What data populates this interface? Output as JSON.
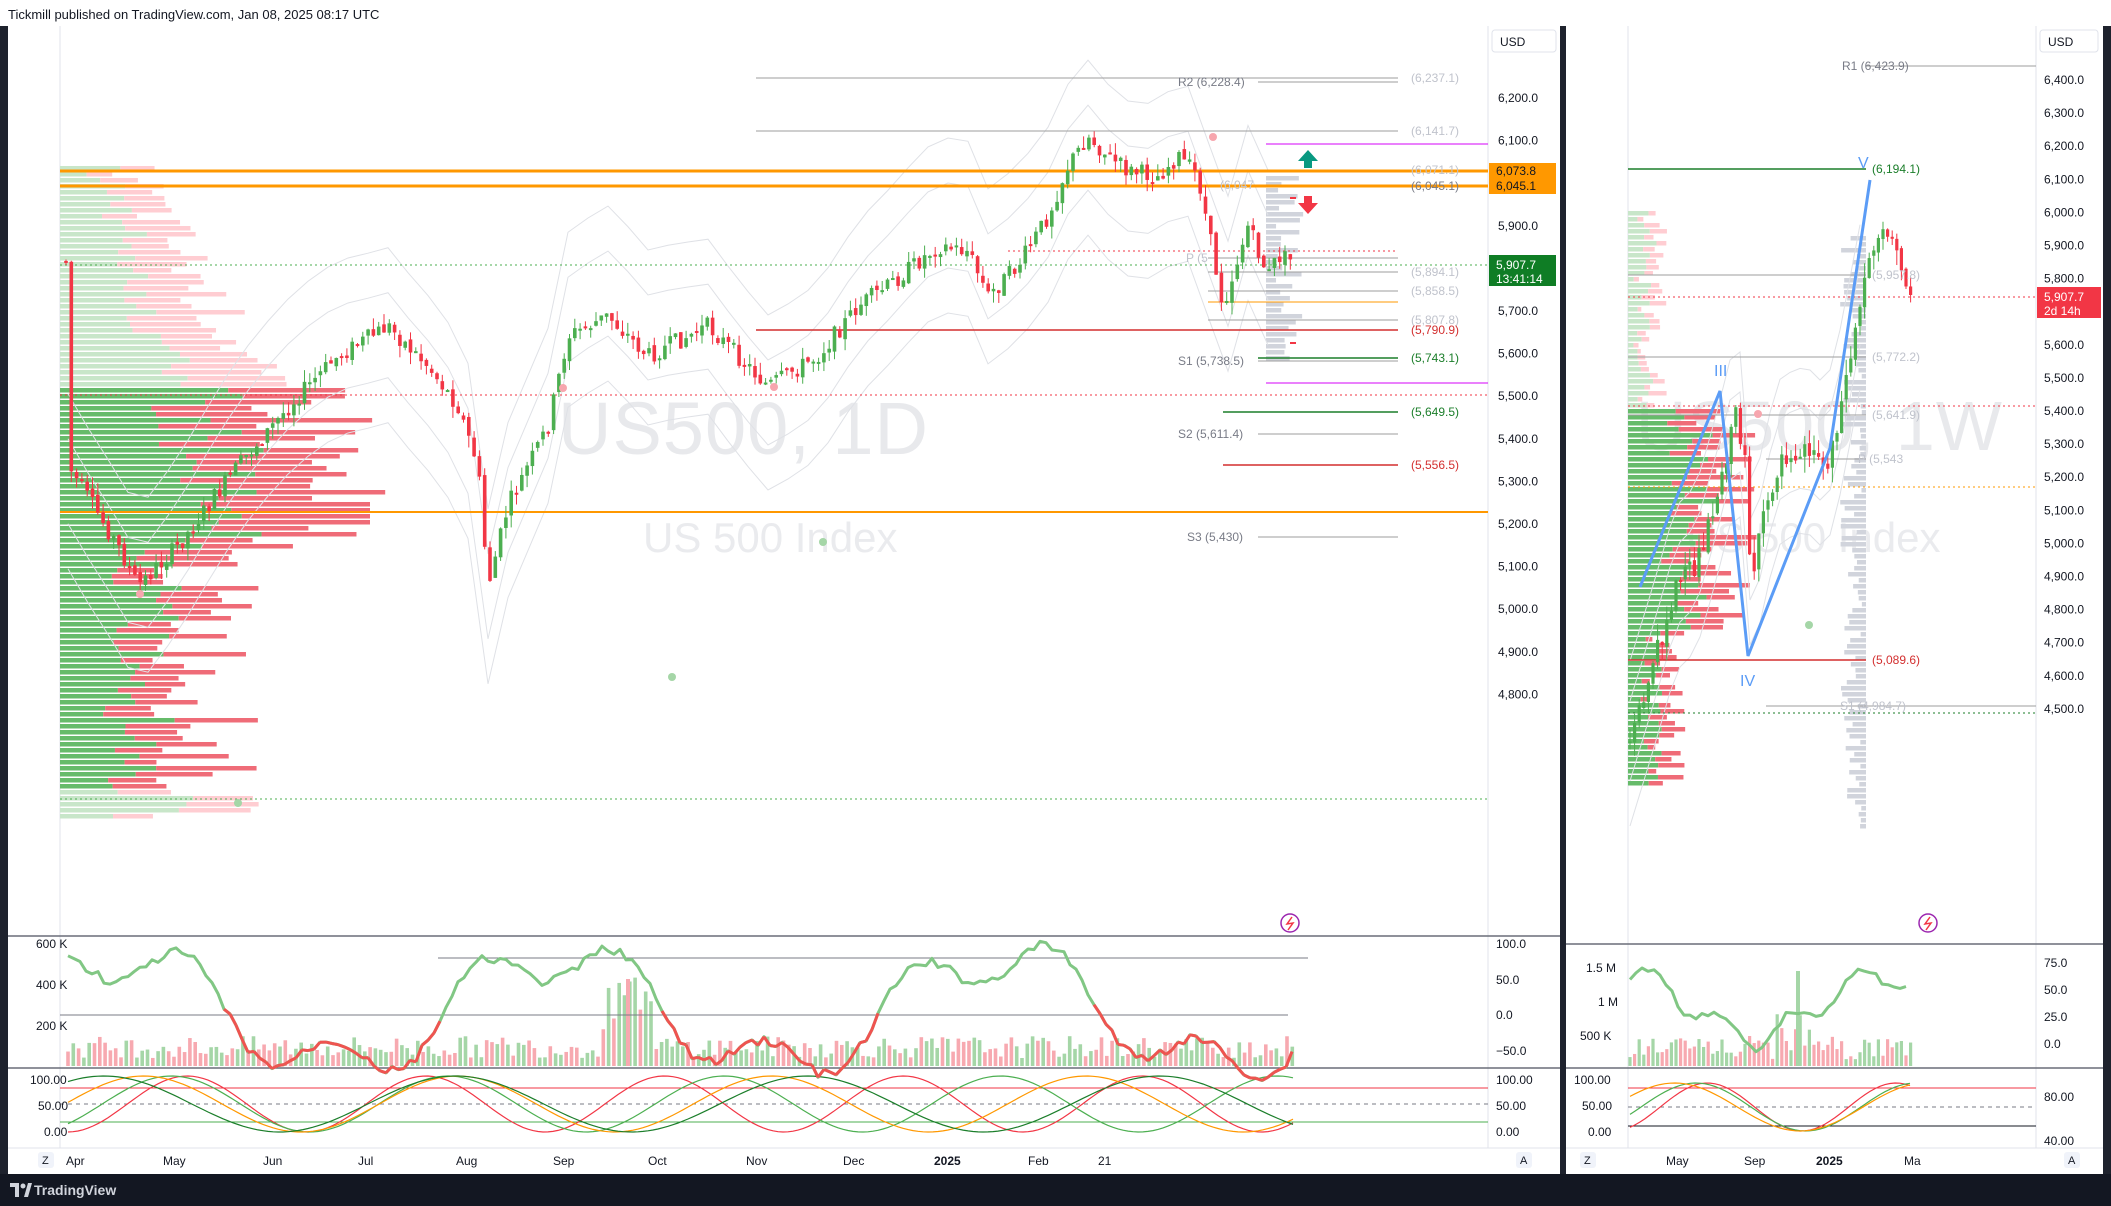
{
  "header": {
    "published": "Tickmill published on TradingView.com, Jan 08, 2025 08:17 UTC"
  },
  "footer": {
    "brand": "TradingView"
  },
  "colors": {
    "up": "#4caf50",
    "down": "#f23645",
    "orange": "#ff9800",
    "green_level": "#1b7e2a",
    "red_level": "#d32f2f",
    "magenta": "#d500f9",
    "gray_level": "#9e9e9e"
  },
  "left_chart": {
    "ticker": "US500, 1D",
    "description": "US 500 Index",
    "currency": "USD",
    "price_ticks": [
      "6,200.0",
      "6,100.0",
      "6,000.0",
      "5,900.0",
      "5,800.0",
      "5,700.0",
      "5,600.0",
      "5,500.0",
      "5,400.0",
      "5,300.0",
      "5,200.0",
      "5,100.0",
      "5,000.0",
      "4,900.0",
      "4,800.0"
    ],
    "orange_tags": [
      "6,073.8",
      "6,045.1"
    ],
    "price_tag": "5,907.7",
    "countdown": "13:41:14",
    "pivot_labels": {
      "r2": "R2 (6,228.4)",
      "p": "P (5",
      "s1": "S1 (5,738.5)",
      "s2": "S2 (5,611.4)",
      "s3": "S3 (5,430)",
      "r1": "(6,047"
    },
    "level_labels": {
      "l6237": "(6,237.1)",
      "l6141": "(6,141.7)",
      "l6071": "(6,071.1)",
      "l6045": "(6,045.1)",
      "l5894": "(5,894.1)",
      "l5858": "(5,858.5)",
      "l5807": "(5,807.8)",
      "l5790": "(5,790.9)",
      "l5743": "(5,743.1)",
      "l5649": "(5,649.5)",
      "l5556": "(5,556.5)"
    },
    "volume_ticks": [
      "600 K",
      "400 K",
      "200 K"
    ],
    "osc_ticks": [
      "100.0",
      "50.0",
      "0.0",
      "−50.0"
    ],
    "stoch_ticks_left": [
      "100.00",
      "50.00",
      "0.00"
    ],
    "stoch_ticks_right": [
      "100.00",
      "50.00",
      "0.00"
    ],
    "time_labels": [
      "Apr",
      "May",
      "Jun",
      "Jul",
      "Aug",
      "Sep",
      "Oct",
      "Nov",
      "Dec",
      "2025",
      "Feb",
      "21"
    ],
    "scale_button": "Z",
    "auto_button": "A"
  },
  "right_chart": {
    "ticker": "US500, 1W",
    "description": "US 500 Index",
    "currency": "USD",
    "price_ticks": [
      "6,400.0",
      "6,300.0",
      "6,200.0",
      "6,100.0",
      "6,000.0",
      "5,900.0",
      "5,800.0",
      "5,700.0",
      "5,600.0",
      "5,500.0",
      "5,400.0",
      "5,300.0",
      "5,200.0",
      "5,100.0",
      "5,000.0",
      "4,900.0",
      "4,800.0",
      "4,700.0",
      "4,600.0",
      "4,500.0"
    ],
    "price_tag": "5,907.7",
    "countdown": "2d 14h",
    "labels": {
      "r1": "R1 (6,423.9)",
      "l6194": "(6,194.1)",
      "l5957": "(5,957.8)",
      "l5772": "(5,772.2)",
      "l5641": "(5,641.9)",
      "p": "P (5,543",
      "l5089": "(5,089.6)",
      "s1": "S1 (4,984.7)"
    },
    "wave_labels": {
      "iii": "III",
      "iv": "IV",
      "v": "V"
    },
    "volume_ticks": [
      "1.5 M",
      "1 M",
      "500 K"
    ],
    "osc_ticks": [
      "75.0",
      "50.0",
      "25.0",
      "0.0"
    ],
    "stoch_ticks_left": [
      "100.00",
      "50.00",
      "0.00"
    ],
    "stoch_ticks_right": [
      "80.00",
      "40.00"
    ],
    "time_labels": [
      "May",
      "Sep",
      "2025",
      "Ma"
    ],
    "scale_button": "Z",
    "auto_button": "A"
  }
}
